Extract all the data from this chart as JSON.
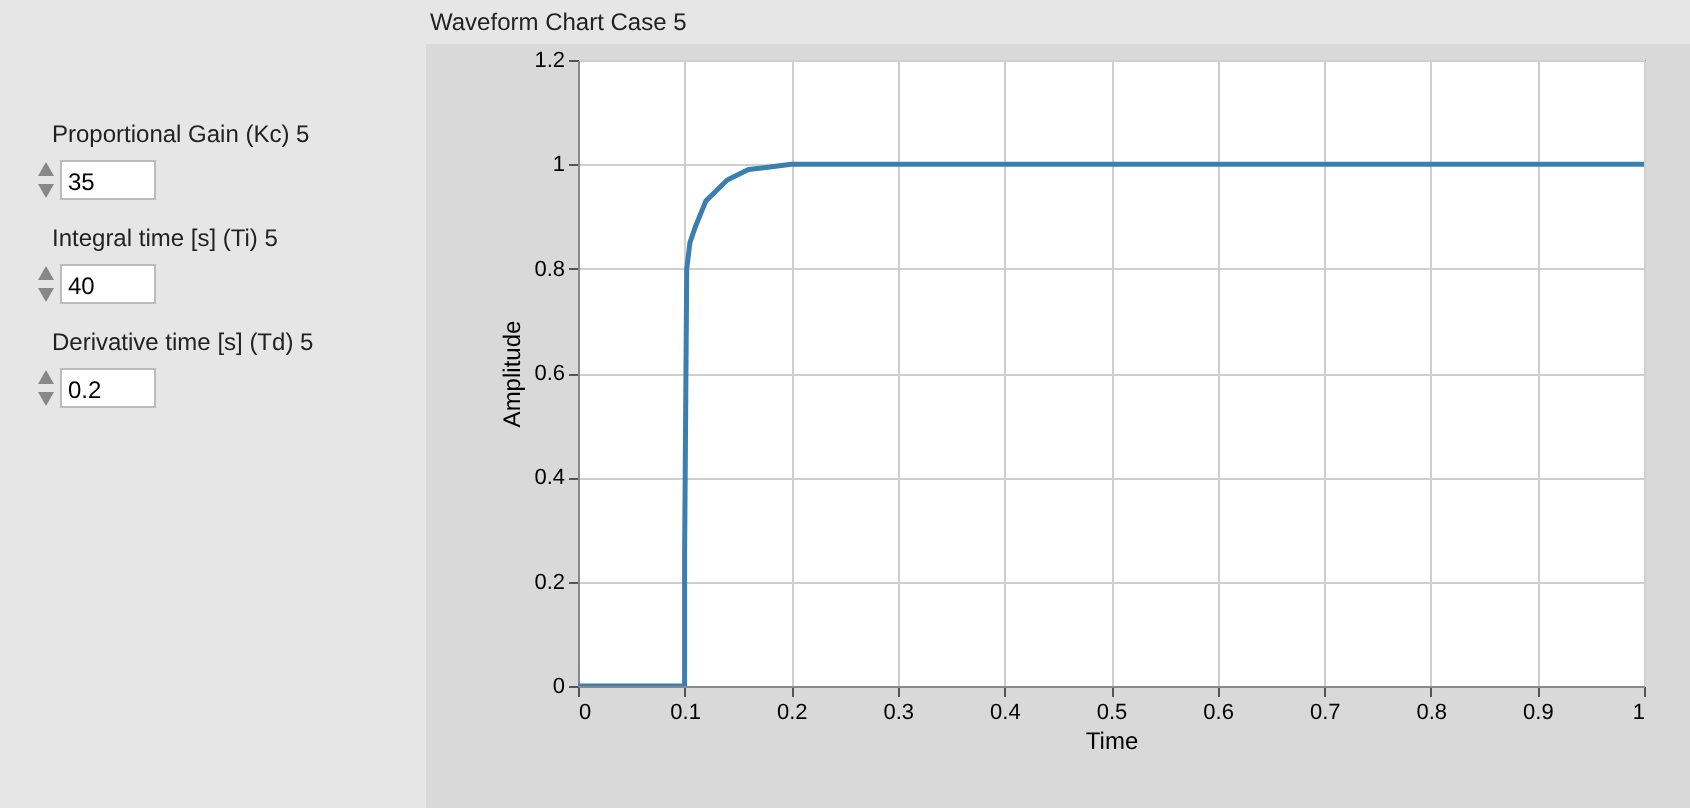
{
  "chart_data": [
    {
      "type": "other",
      "annotations": [
        "Proportional Gain (Kc) 5",
        "35",
        "Integral time [s] (Ti) 5",
        "40",
        "Derivative time [s] (Td) 5",
        "0.2"
      ]
    },
    {
      "type": "line",
      "title": "Waveform Chart Case 5",
      "xlabel": "Time",
      "ylabel": "Amplitude",
      "x": [
        0,
        0.1,
        0.1,
        0.102,
        0.105,
        0.11,
        0.12,
        0.13,
        0.14,
        0.16,
        0.18,
        0.2,
        1
      ],
      "series": [
        {
          "color": "#3a7fb0",
          "values": [
            0,
            0,
            0.25,
            0.8,
            0.85,
            0.88,
            0.93,
            0.95,
            0.97,
            0.99,
            0.995,
            1,
            1
          ]
        }
      ],
      "xlim": [
        0,
        1
      ],
      "xticks": [
        0,
        0.1,
        0.2,
        0.3,
        0.4,
        0.5,
        0.6,
        0.7,
        0.8,
        0.9,
        1
      ],
      "ylim": [
        0,
        1.2
      ],
      "yticks": [
        0,
        0.2,
        0.4,
        0.6,
        0.8,
        1,
        1.2
      ],
      "grid": true,
      "marker": "none",
      "line_style": "solid"
    }
  ]
}
